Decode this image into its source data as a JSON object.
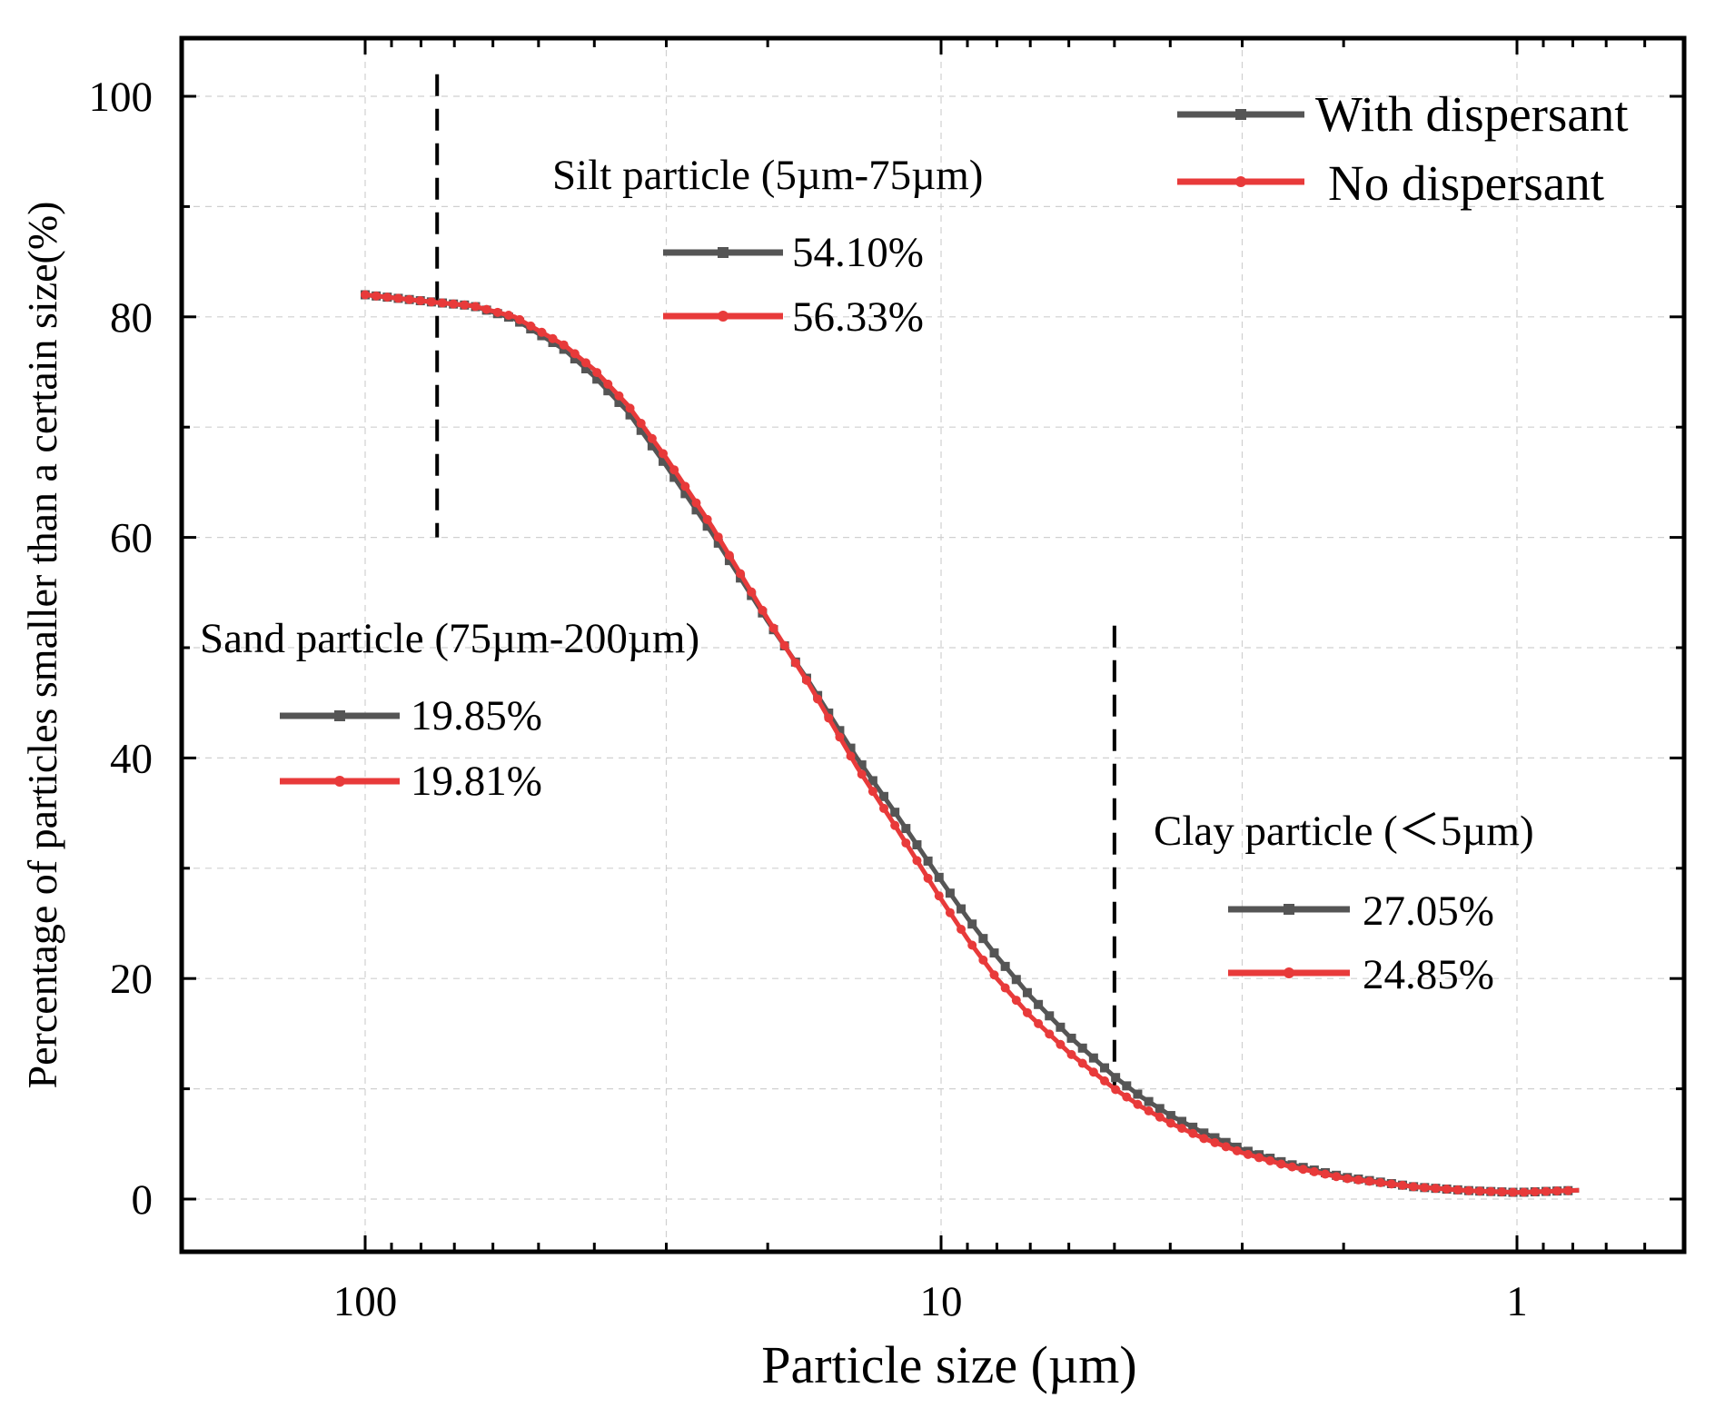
{
  "chart_data": {
    "type": "line",
    "xlabel": "Particle size (µm)",
    "ylabel": "Percentage of particles smaller than a certain  size(%)",
    "x_scale": "log",
    "x_reversed": true,
    "xlim": [
      200,
      0.6
    ],
    "ylim": [
      -5,
      105
    ],
    "grid": true,
    "x_ticks": [
      {
        "value": 100,
        "label": "100"
      },
      {
        "value": 10,
        "label": "10"
      },
      {
        "value": 1,
        "label": "1"
      }
    ],
    "y_ticks": [
      {
        "value": 0,
        "label": "0"
      },
      {
        "value": 20,
        "label": "20"
      },
      {
        "value": 40,
        "label": "40"
      },
      {
        "value": 60,
        "label": "60"
      },
      {
        "value": 80,
        "label": "80"
      },
      {
        "value": 100,
        "label": "100"
      }
    ],
    "legend": {
      "position": "top-right",
      "entries": [
        "With dispersant",
        "No dispersant"
      ]
    },
    "series": [
      {
        "name": "With dispersant",
        "color": "#555555",
        "marker": "square",
        "x": [
          100,
          75,
          65,
          55,
          45,
          40,
          35,
          30,
          25,
          20,
          17,
          14,
          12,
          10,
          9,
          8,
          7,
          6,
          5,
          4.5,
          4,
          3.5,
          3,
          2.5,
          2,
          1.5,
          1.2,
          1,
          0.78
        ],
        "y": [
          82,
          81.3,
          81.0,
          79.8,
          77.0,
          74.6,
          71.4,
          66.5,
          60.4,
          52.4,
          47.0,
          40.0,
          35.0,
          28.9,
          25.5,
          22.0,
          18.4,
          14.8,
          11.1,
          9.3,
          7.6,
          6.0,
          4.5,
          3.2,
          2.0,
          1.1,
          0.75,
          0.6,
          0.8
        ]
      },
      {
        "name": "No dispersant",
        "color": "#e83a3a",
        "marker": "circle",
        "x": [
          100,
          75,
          65,
          55,
          45,
          40,
          35,
          30,
          25,
          20,
          17,
          14,
          12,
          10,
          9,
          8,
          7,
          6,
          5,
          4.5,
          4,
          3.5,
          3,
          2.5,
          2,
          1.5,
          1.2,
          1,
          0.78
        ],
        "y": [
          82,
          81.3,
          81.0,
          80.0,
          77.4,
          75.2,
          72.0,
          67.2,
          61.0,
          52.6,
          46.8,
          39.2,
          33.8,
          27.2,
          23.6,
          20.0,
          16.6,
          13.3,
          10.0,
          8.4,
          6.9,
          5.5,
          4.2,
          3.0,
          1.9,
          1.1,
          0.75,
          0.6,
          0.8
        ]
      }
    ],
    "reference_lines": [
      {
        "x": 75,
        "y_range": [
          60,
          102
        ],
        "style": "dashed"
      },
      {
        "x": 5,
        "y_range": [
          10,
          52
        ],
        "style": "dashed"
      }
    ],
    "annotations": [
      {
        "title": "Silt particle (5µm-75µm)",
        "values": [
          {
            "series": "With dispersant",
            "value": "54.10%"
          },
          {
            "series": "No dispersant",
            "value": "56.33%"
          }
        ]
      },
      {
        "title": "Sand particle (75µm-200µm)",
        "values": [
          {
            "series": "With dispersant",
            "value": "19.85%"
          },
          {
            "series": "No dispersant",
            "value": "19.81%"
          }
        ]
      },
      {
        "title": "Clay particle (＜5µm)",
        "values": [
          {
            "series": "With dispersant",
            "value": "27.05%"
          },
          {
            "series": "No dispersant",
            "value": "24.85%"
          }
        ]
      }
    ]
  }
}
